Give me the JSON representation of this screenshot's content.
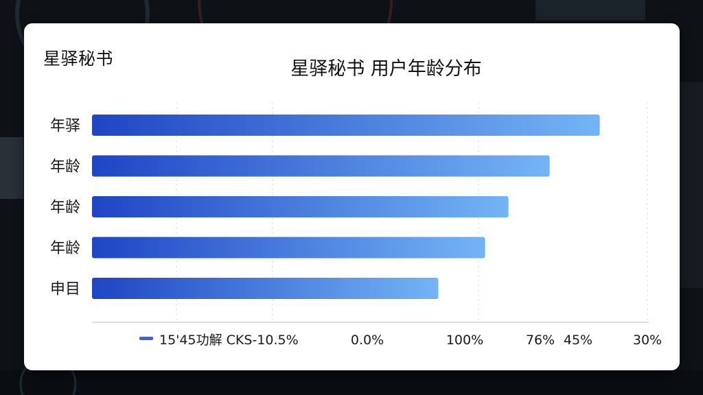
{
  "brand": "星驿秘书",
  "chart_data": {
    "type": "bar",
    "orientation": "horizontal",
    "title": "星驿秘书 用户年龄分布",
    "categories": [
      "年驿",
      "年龄",
      "年龄",
      "年龄",
      "申目"
    ],
    "values": [
      45.6,
      41.1,
      37.4,
      35.3,
      31.1
    ],
    "xlim": [
      0,
      50
    ],
    "tick_labels": [
      "0.0%",
      "100%",
      "76%",
      "45%",
      "30%"
    ],
    "legend": {
      "label": "15'45功解 CKS-10.5%",
      "placement": "bottom-left"
    },
    "grid": true,
    "colors": {
      "bar_start": "#1f45c4",
      "bar_end": "#74b4f5",
      "legend_swatch": "#3a63d6"
    }
  }
}
